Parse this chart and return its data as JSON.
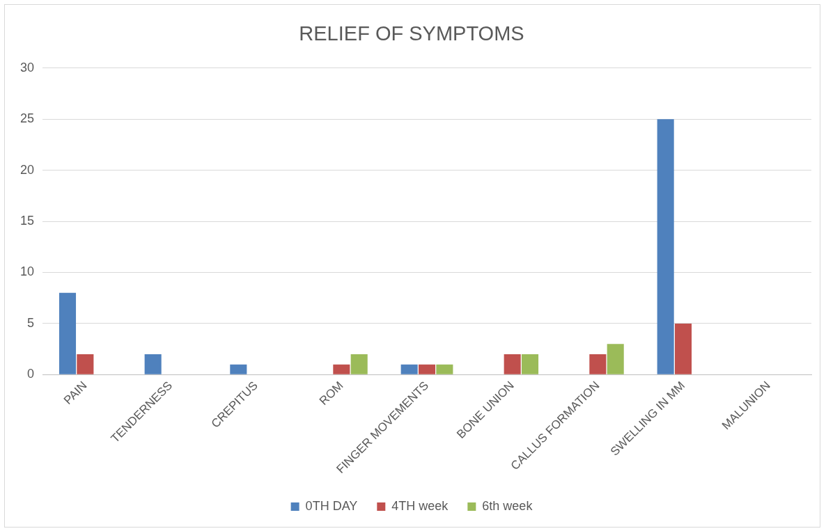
{
  "chart_data": {
    "type": "bar",
    "title": "RELIEF OF SYMPTOMS",
    "categories": [
      "PAIN",
      "TENDERNESS",
      "CREPITUS",
      "ROM",
      "FINGER MOVEMENTS",
      "BONE UNION",
      "CALLUS FORMATION",
      "SWELLING IN MM",
      "MALUNION"
    ],
    "series": [
      {
        "name": "0TH DAY",
        "color": "#4f81bd",
        "values": [
          8,
          2,
          1,
          0,
          1,
          0,
          0,
          25,
          0
        ]
      },
      {
        "name": "4TH week",
        "color": "#c0504d",
        "values": [
          2,
          0,
          0,
          1,
          1,
          2,
          2,
          5,
          0
        ]
      },
      {
        "name": "6th week",
        "color": "#9bbb59",
        "values": [
          0,
          0,
          0,
          2,
          1,
          2,
          3,
          0,
          0
        ]
      }
    ],
    "ylim": [
      0,
      30
    ],
    "yticks": [
      0,
      5,
      10,
      15,
      20,
      25,
      30
    ],
    "grid": "y",
    "legend": "bottom"
  }
}
